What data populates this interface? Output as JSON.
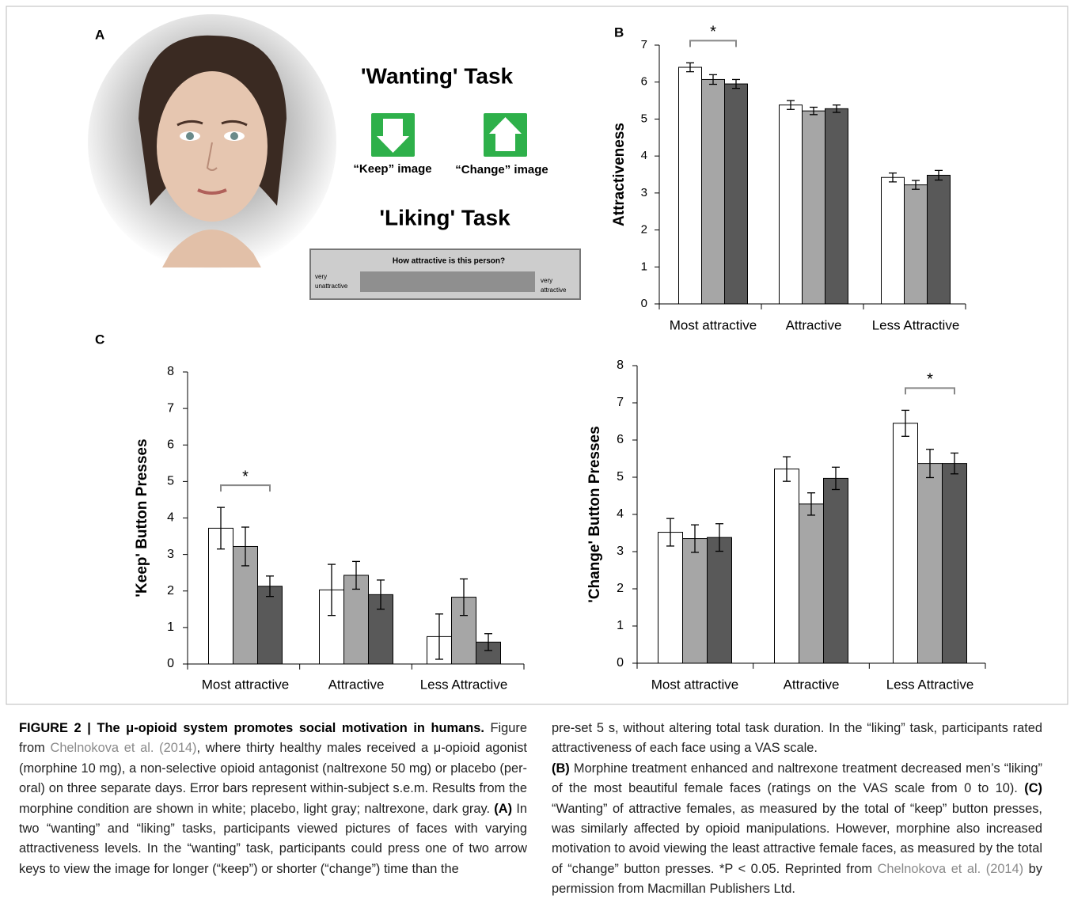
{
  "panel_a": {
    "label": "A",
    "wanting_title": "'Wanting' Task",
    "keep_label": "“Keep” image",
    "change_label": "“Change” image",
    "liking_title": "'Liking' Task",
    "vas_question": "How attractive is this person?",
    "vas_left": [
      "very",
      "unattractive"
    ],
    "vas_right": [
      "very",
      "attractive"
    ]
  },
  "chart_data": [
    {
      "type": "bar",
      "panel_label": "B",
      "y_label": "Attractiveness",
      "categories": [
        "Most attractive",
        "Attractive",
        "Less Attractive"
      ],
      "ylim": [
        0,
        7
      ],
      "yticks": [
        0,
        1,
        2,
        3,
        4,
        5,
        6,
        7
      ],
      "series": [
        {
          "color": "#ffffff",
          "values": [
            6.4,
            5.38,
            3.42
          ],
          "errors": [
            0.12,
            0.12,
            0.12
          ]
        },
        {
          "color": "#a6a6a6",
          "values": [
            6.07,
            5.22,
            3.22
          ],
          "errors": [
            0.13,
            0.1,
            0.12
          ]
        },
        {
          "color": "#595959",
          "values": [
            5.95,
            5.28,
            3.48
          ],
          "errors": [
            0.12,
            0.1,
            0.13
          ]
        }
      ],
      "annotation": {
        "text": "*",
        "category": "Most attractive"
      }
    },
    {
      "type": "bar",
      "panel_label": "C",
      "y_label": "'Keep' Button Presses",
      "categories": [
        "Most attractive",
        "Attractive",
        "Less Attractive"
      ],
      "ylim": [
        0,
        8
      ],
      "yticks": [
        0,
        1,
        2,
        3,
        4,
        5,
        6,
        7,
        8
      ],
      "series": [
        {
          "color": "#ffffff",
          "values": [
            3.72,
            2.03,
            0.75
          ],
          "errors": [
            0.57,
            0.7,
            0.62
          ]
        },
        {
          "color": "#a6a6a6",
          "values": [
            3.22,
            2.43,
            1.83
          ],
          "errors": [
            0.53,
            0.38,
            0.5
          ]
        },
        {
          "color": "#595959",
          "values": [
            2.13,
            1.9,
            0.6
          ],
          "errors": [
            0.28,
            0.4,
            0.23
          ]
        }
      ],
      "annotation": {
        "text": "*",
        "category": "Most attractive"
      }
    },
    {
      "type": "bar",
      "y_label": "'Change' Button Presses",
      "categories": [
        "Most attractive",
        "Attractive",
        "Less Attractive"
      ],
      "ylim": [
        0,
        8
      ],
      "yticks": [
        0,
        1,
        2,
        3,
        4,
        5,
        6,
        7,
        8
      ],
      "series": [
        {
          "color": "#ffffff",
          "values": [
            3.52,
            5.22,
            6.45
          ],
          "errors": [
            0.37,
            0.33,
            0.35
          ]
        },
        {
          "color": "#a6a6a6",
          "values": [
            3.35,
            4.28,
            5.37
          ],
          "errors": [
            0.37,
            0.3,
            0.38
          ]
        },
        {
          "color": "#595959",
          "values": [
            3.38,
            4.97,
            5.37
          ],
          "errors": [
            0.37,
            0.3,
            0.28
          ]
        }
      ],
      "annotation": {
        "text": "*",
        "category": "Less Attractive"
      }
    }
  ],
  "caption": {
    "left": [
      "FIGURE 2 | The μ-opioid system promotes social motivation in humans.",
      " Figure from ",
      "Chelnokova et al. (2014)",
      ", where thirty healthy males received a μ-opioid agonist (morphine 10 mg), a non-selective opioid antagonist (naltrexone 50 mg) or placebo (per-oral) on three separate days. Error bars represent within-subject s.e.m. Results from the morphine condition are shown in white; placebo, light gray; naltrexone, dark gray. ",
      "(A)",
      " In two “wanting” and “liking” tasks, participants viewed pictures of faces with varying attractiveness levels. In the “wanting” task, participants could press one of two arrow keys to view the image for longer (“keep”) or shorter (“change”) time than the"
    ],
    "right_1": "pre-set 5 s, without altering total task duration. In the “liking” task, participants rated attractiveness of each face using a VAS scale.",
    "right_2": [
      "(B)",
      " Morphine treatment enhanced and naltrexone treatment decreased men’s “liking” of the most beautiful female faces (ratings on the VAS scale from 0 to 10). ",
      "(C)",
      " “Wanting” of attractive females, as measured by the total of “keep” button presses, was similarly affected by opioid manipulations. However, morphine also increased motivation to avoid viewing the least attractive female faces, as measured by the total of “change” button presses. *P < 0.05. Reprinted from ",
      "Chelnokova et al. (2014)",
      " by permission from Macmillan Publishers Ltd."
    ]
  }
}
